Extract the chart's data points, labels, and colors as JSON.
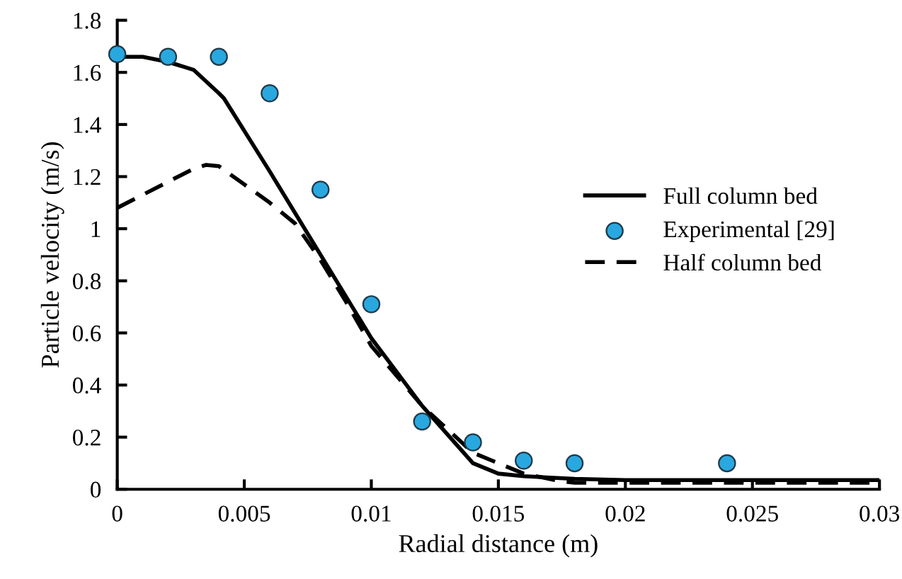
{
  "chart_data": {
    "type": "line",
    "xlabel": "Radial distance (m)",
    "ylabel": "Particle velocity (m/s)",
    "xlim": [
      0,
      0.03
    ],
    "ylim": [
      0,
      1.8
    ],
    "xticks": [
      0,
      0.005,
      0.01,
      0.015,
      0.02,
      0.025,
      0.03
    ],
    "yticks": [
      0,
      0.2,
      0.4,
      0.6,
      0.8,
      1,
      1.2,
      1.4,
      1.6,
      1.8
    ],
    "grid": false,
    "legend": "right",
    "series": [
      {
        "name": "Full column bed",
        "color": "#000000",
        "line_style": "solid",
        "x": [
          0,
          0.001,
          0.002,
          0.003,
          0.004,
          0.0042,
          0.006,
          0.008,
          0.01,
          0.012,
          0.014,
          0.015,
          0.016,
          0.018,
          0.02,
          0.03
        ],
        "values": [
          1.66,
          1.66,
          1.64,
          1.61,
          1.52,
          1.5,
          1.22,
          0.9,
          0.58,
          0.32,
          0.1,
          0.06,
          0.05,
          0.04,
          0.035,
          0.035
        ]
      },
      {
        "name": "Experimental [29]",
        "type": "scatter",
        "color": "#29a8e0",
        "marker": "circle",
        "x": [
          0,
          0.002,
          0.004,
          0.006,
          0.008,
          0.01,
          0.012,
          0.014,
          0.016,
          0.018,
          0.024
        ],
        "values": [
          1.67,
          1.66,
          1.66,
          1.52,
          1.15,
          0.71,
          0.26,
          0.18,
          0.11,
          0.1,
          0.1
        ]
      },
      {
        "name": "Half column bed",
        "color": "#000000",
        "line_style": "dashed",
        "x": [
          0,
          0.001,
          0.002,
          0.003,
          0.0035,
          0.004,
          0.005,
          0.006,
          0.007,
          0.008,
          0.009,
          0.01,
          0.012,
          0.014,
          0.016,
          0.0175,
          0.018,
          0.02,
          0.03
        ],
        "values": [
          1.08,
          1.13,
          1.18,
          1.23,
          1.245,
          1.24,
          1.17,
          1.1,
          1.02,
          0.88,
          0.72,
          0.55,
          0.32,
          0.14,
          0.06,
          0.03,
          0.025,
          0.025,
          0.025
        ]
      }
    ]
  }
}
